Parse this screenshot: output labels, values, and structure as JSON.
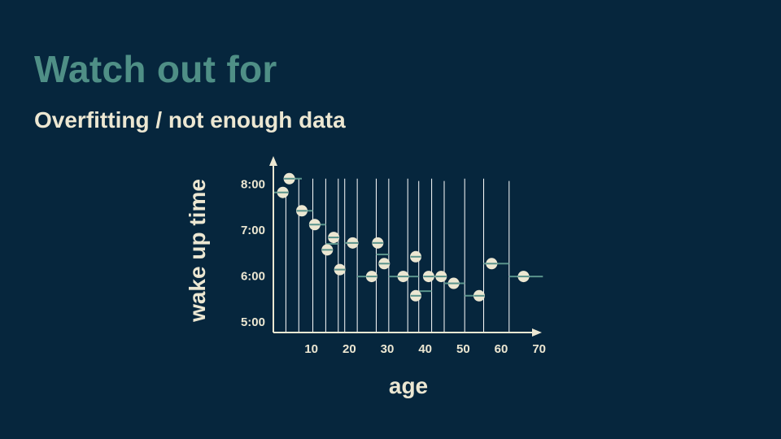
{
  "slide": {
    "title": "Watch out for",
    "subtitle": "Overfitting / not enough data"
  },
  "colors": {
    "background": "#06263d",
    "title": "#4f8f86",
    "text": "#ece7d2",
    "step_line": "#5a948c",
    "axis": "#ece7d2",
    "split_line": "#ffffff",
    "point_fill": "#ece7d2",
    "point_band": "#5a948c"
  },
  "chart_data": {
    "type": "scatter",
    "xlabel": "age",
    "ylabel": "wake up time",
    "x_ticks": [
      10,
      20,
      30,
      40,
      50,
      60,
      70
    ],
    "x_tick_labels": [
      "10",
      "20",
      "30",
      "40",
      "50",
      "60",
      "70"
    ],
    "y_ticks": [
      5,
      6,
      7,
      8
    ],
    "y_tick_labels": [
      "5:00",
      "6:00",
      "7:00",
      "8:00"
    ],
    "xlim": [
      0,
      72
    ],
    "ylim": [
      4.75,
      8.45
    ],
    "grid": false,
    "legend": "none",
    "points": [
      {
        "x": 2.5,
        "y": 7.8
      },
      {
        "x": 4.2,
        "y": 8.1
      },
      {
        "x": 7.5,
        "y": 7.4
      },
      {
        "x": 10.9,
        "y": 7.1
      },
      {
        "x": 14.2,
        "y": 6.55
      },
      {
        "x": 15.9,
        "y": 6.82
      },
      {
        "x": 17.5,
        "y": 6.12
      },
      {
        "x": 20.9,
        "y": 6.7
      },
      {
        "x": 25.9,
        "y": 5.97
      },
      {
        "x": 27.5,
        "y": 6.7
      },
      {
        "x": 29.2,
        "y": 6.25
      },
      {
        "x": 34.2,
        "y": 5.97
      },
      {
        "x": 37.5,
        "y": 6.4
      },
      {
        "x": 37.5,
        "y": 5.55
      },
      {
        "x": 40.9,
        "y": 5.97
      },
      {
        "x": 44.2,
        "y": 5.97
      },
      {
        "x": 47.5,
        "y": 5.82
      },
      {
        "x": 54.2,
        "y": 5.55
      },
      {
        "x": 57.5,
        "y": 6.25
      },
      {
        "x": 65.9,
        "y": 5.97
      }
    ],
    "step_fit": [
      {
        "x0": 0,
        "x1": 3.3,
        "y": 7.8
      },
      {
        "x0": 3.3,
        "x1": 7.5,
        "y": 8.1
      },
      {
        "x0": 6.7,
        "x1": 10.4,
        "y": 7.4
      },
      {
        "x0": 10.4,
        "x1": 13.8,
        "y": 7.1
      },
      {
        "x0": 13.8,
        "x1": 17.1,
        "y": 6.68
      },
      {
        "x0": 17.1,
        "x1": 18.8,
        "y": 6.12
      },
      {
        "x0": 18.8,
        "x1": 22.1,
        "y": 6.7
      },
      {
        "x0": 22.1,
        "x1": 27.1,
        "y": 5.97
      },
      {
        "x0": 27.1,
        "x1": 30.4,
        "y": 6.45
      },
      {
        "x0": 30.4,
        "x1": 38.3,
        "y": 5.97
      },
      {
        "x0": 38.3,
        "x1": 41.7,
        "y": 5.65
      },
      {
        "x0": 41.7,
        "x1": 45,
        "y": 5.97
      },
      {
        "x0": 45,
        "x1": 50.4,
        "y": 5.82
      },
      {
        "x0": 50.4,
        "x1": 55.4,
        "y": 5.55
      },
      {
        "x0": 55.4,
        "x1": 62.1,
        "y": 6.25
      },
      {
        "x0": 62.1,
        "x1": 71,
        "y": 5.97
      }
    ],
    "splits": [
      {
        "x": 3.3,
        "top": 7.9
      },
      {
        "x": 6.7,
        "top": 8.1
      },
      {
        "x": 10.4,
        "top": 8.1
      },
      {
        "x": 13.8,
        "top": 8.1
      },
      {
        "x": 17.1,
        "top": 8.1
      },
      {
        "x": 18.8,
        "top": 8.1
      },
      {
        "x": 22.1,
        "top": 8.1
      },
      {
        "x": 27.1,
        "top": 8.1
      },
      {
        "x": 30.4,
        "top": 8.1
      },
      {
        "x": 35.4,
        "top": 8.1
      },
      {
        "x": 38.3,
        "top": 8.05
      },
      {
        "x": 41.7,
        "top": 8.1
      },
      {
        "x": 45,
        "top": 8.05
      },
      {
        "x": 50.4,
        "top": 8.1
      },
      {
        "x": 55.4,
        "top": 8.1
      },
      {
        "x": 62.1,
        "top": 8.05
      }
    ]
  }
}
